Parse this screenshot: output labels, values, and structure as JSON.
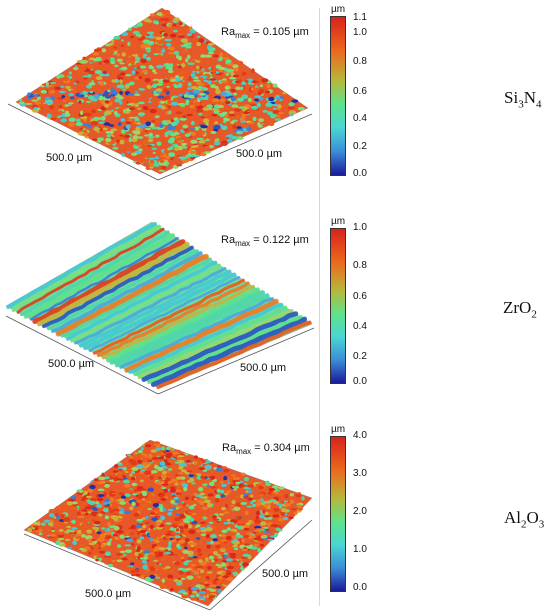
{
  "colors": {
    "low": "#1a1a9a",
    "mid": "#4fe08a",
    "high": "#e83a1a"
  },
  "panels": [
    {
      "id": "si3n4",
      "material_parts": [
        "Si",
        "3",
        "N",
        "4"
      ],
      "ra_prefix": "Ra",
      "ra_sub": "max",
      "ra_value": " = 0.105 µm",
      "x_label": "500.0 µm",
      "y_label": "500.0 µm",
      "unit": "µm",
      "ticks": [
        "1.1",
        "1.0",
        "0.8",
        "0.6",
        "0.4",
        "0.2",
        "0.0"
      ],
      "dominant": "high"
    },
    {
      "id": "zro2",
      "material_parts": [
        "ZrO",
        "2"
      ],
      "ra_prefix": "Ra",
      "ra_sub": "max",
      "ra_value": " = 0.122 µm",
      "x_label": "500.0 µm",
      "y_label": "500.0 µm",
      "unit": "µm",
      "ticks": [
        "1.0",
        "0.8",
        "0.6",
        "0.4",
        "0.2",
        "0.0"
      ],
      "dominant": "mixed"
    },
    {
      "id": "al2o3",
      "material_parts": [
        "Al",
        "2",
        "O",
        "3"
      ],
      "ra_prefix": "Ra",
      "ra_sub": "max",
      "ra_value": " = 0.304 µm",
      "x_label": "500.0 µm",
      "y_label": "500.0 µm",
      "unit": "µm",
      "ticks": [
        "4.0",
        "3.0",
        "2.0",
        "1.0",
        "0.0"
      ],
      "dominant": "high"
    }
  ]
}
